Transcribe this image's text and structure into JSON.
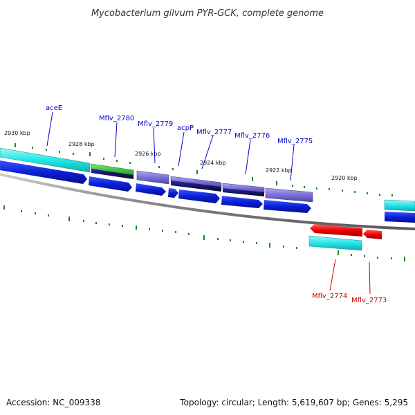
{
  "title": "Mycobacterium gilvum PYR-GCK, complete genome",
  "accession": "Accession: NC_009338",
  "summary": "Topology: circular; Length: 5,619,607 bp; Genes: 5,295",
  "colors": {
    "forward_label": "#0000cc",
    "reverse_label": "#cc0000",
    "tick": "#1a8a1a",
    "backbone": "#888888",
    "cds_forward": "#0a1fd6",
    "cds_reverse": "#ee0000",
    "gene_cyan": "#22e6e6",
    "gene_green": "#3fc83f",
    "gene_purple": "#7a70d8",
    "gene_navy": "#0a0a5a"
  },
  "kbp_labels": [
    "2930 kbp",
    "2928 kbp",
    "2926 kbp",
    "2924 kbp",
    "2922 kbp",
    "2920 kbp"
  ],
  "genes_forward": [
    {
      "label": "aceE"
    },
    {
      "label": "Mflv_2780"
    },
    {
      "label": "Mflv_2779"
    },
    {
      "label": "acpP"
    },
    {
      "label": "Mflv_2777"
    },
    {
      "label": "Mflv_2776"
    },
    {
      "label": "Mflv_2775"
    }
  ],
  "genes_reverse": [
    {
      "label": "Mflv_2774"
    },
    {
      "label": "Mflv_2773"
    }
  ]
}
